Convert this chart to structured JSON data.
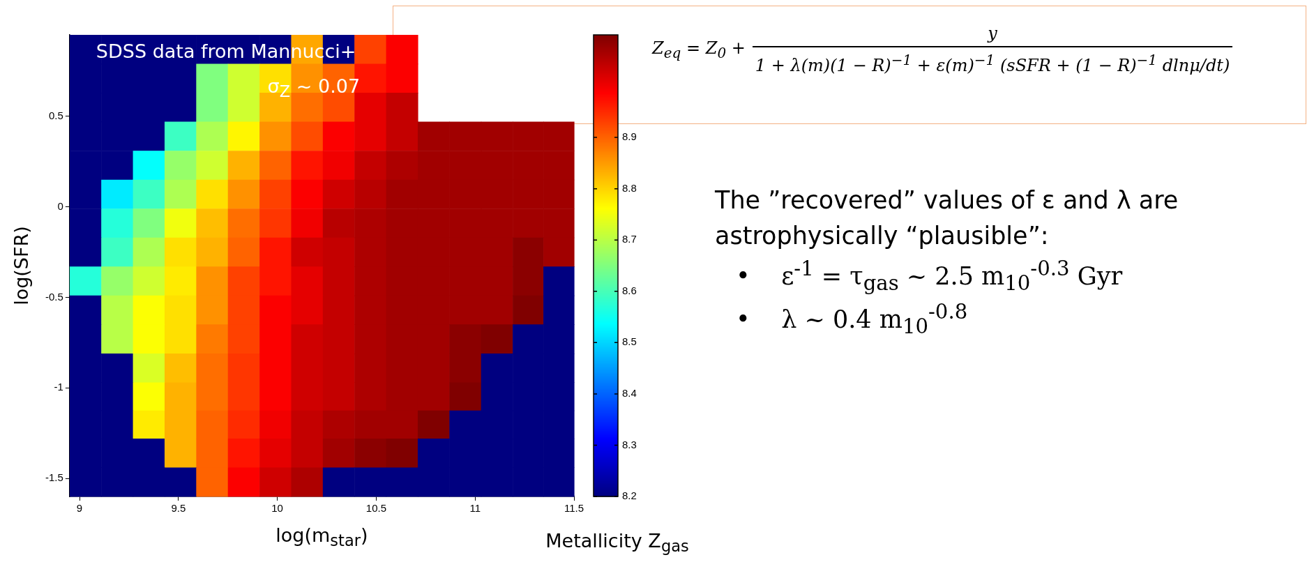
{
  "chart_data": {
    "type": "heatmap",
    "xlabel": "log(m$_{star}$)",
    "ylabel": "log(SFR)",
    "clabel": "Metallicity Z$_{gas}$",
    "x": [
      9.03,
      9.19,
      9.35,
      9.51,
      9.67,
      9.83,
      9.99,
      10.15,
      10.31,
      10.47,
      10.63,
      10.79,
      10.95,
      11.11,
      11.27,
      11.42
    ],
    "y": [
      0.87,
      0.71,
      0.55,
      0.39,
      0.23,
      0.07,
      -0.09,
      -0.25,
      -0.41,
      -0.57,
      -0.73,
      -0.89,
      -1.05,
      -1.2,
      -1.36,
      -1.52
    ],
    "xlim": [
      8.95,
      11.5
    ],
    "xticks": [
      9,
      9.5,
      10,
      10.5,
      11,
      11.5
    ],
    "ylim": [
      -1.6,
      0.95
    ],
    "yticks": [
      -1.5,
      -1,
      -0.5,
      0,
      0.5
    ],
    "clim": [
      8.2,
      9.1
    ],
    "cticks": [
      8.2,
      8.3,
      8.4,
      8.5,
      8.6,
      8.7,
      8.8,
      8.9
    ],
    "cells": [
      [
        8.2,
        8.2,
        8.2,
        8.2,
        8.2,
        8.2,
        8.2,
        8.84,
        8.2,
        8.93,
        8.99,
        null,
        null,
        null,
        null,
        null
      ],
      [
        8.2,
        8.2,
        8.2,
        8.2,
        8.65,
        8.72,
        8.79,
        8.86,
        8.9,
        8.97,
        8.99,
        null,
        null,
        null,
        null,
        null
      ],
      [
        8.2,
        8.2,
        8.2,
        8.2,
        8.65,
        8.72,
        8.83,
        8.89,
        8.92,
        9.01,
        9.04,
        null,
        null,
        null,
        null,
        null
      ],
      [
        8.2,
        8.2,
        8.2,
        8.59,
        8.69,
        8.77,
        8.86,
        8.92,
        8.99,
        9.01,
        9.04,
        9.07,
        9.07,
        9.07,
        9.07,
        9.07
      ],
      [
        8.2,
        8.2,
        8.54,
        8.67,
        8.72,
        8.83,
        8.9,
        8.97,
        9.0,
        9.04,
        9.06,
        9.07,
        9.07,
        9.07,
        9.07,
        9.07
      ],
      [
        8.2,
        8.52,
        8.59,
        8.69,
        8.79,
        8.86,
        8.93,
        8.99,
        9.03,
        9.05,
        9.07,
        9.07,
        9.07,
        9.07,
        9.07,
        9.07
      ],
      [
        8.2,
        8.57,
        8.65,
        8.75,
        8.82,
        8.89,
        8.94,
        9.0,
        9.05,
        9.06,
        9.07,
        9.07,
        9.07,
        9.07,
        9.07,
        9.07
      ],
      [
        8.2,
        8.59,
        8.69,
        8.79,
        8.83,
        8.9,
        8.97,
        9.03,
        9.04,
        9.06,
        9.07,
        9.07,
        9.07,
        9.07,
        9.09,
        9.07
      ],
      [
        8.57,
        8.67,
        8.72,
        8.78,
        8.86,
        8.93,
        8.97,
        9.01,
        9.04,
        9.06,
        9.07,
        9.07,
        9.07,
        9.07,
        9.09,
        8.2
      ],
      [
        8.2,
        8.7,
        8.76,
        8.79,
        8.86,
        8.93,
        8.99,
        9.01,
        9.04,
        9.06,
        9.07,
        9.07,
        9.07,
        9.07,
        9.1,
        8.2
      ],
      [
        8.2,
        8.7,
        8.76,
        8.79,
        8.88,
        8.93,
        8.99,
        9.03,
        9.04,
        9.06,
        9.07,
        9.07,
        9.09,
        9.1,
        8.2,
        8.2
      ],
      [
        8.2,
        8.2,
        8.73,
        8.82,
        8.89,
        8.94,
        8.99,
        9.03,
        9.04,
        9.06,
        9.07,
        9.07,
        9.09,
        8.2,
        8.2,
        8.2
      ],
      [
        8.2,
        8.2,
        8.76,
        8.83,
        8.89,
        8.94,
        8.99,
        9.03,
        9.04,
        9.06,
        9.07,
        9.07,
        9.1,
        8.2,
        8.2,
        8.2
      ],
      [
        8.2,
        8.2,
        8.78,
        8.83,
        8.9,
        8.95,
        9.0,
        9.04,
        9.06,
        9.07,
        9.07,
        9.1,
        8.2,
        8.2,
        8.2,
        8.2
      ],
      [
        8.2,
        8.2,
        8.2,
        8.83,
        8.9,
        8.97,
        9.01,
        9.04,
        9.07,
        9.09,
        9.1,
        8.2,
        8.2,
        8.2,
        8.2,
        8.2
      ],
      [
        8.2,
        8.2,
        8.2,
        8.2,
        8.9,
        8.99,
        9.03,
        9.06,
        8.2,
        8.2,
        8.2,
        8.2,
        8.2,
        8.2,
        8.2,
        8.2
      ]
    ],
    "annotations": [
      "SDSS data from Mannucci+",
      "σ$_{Z}$ ~ 0.07",
      "Z$_{eq}$ = Z$_{0}$ +",
      "y",
      "1 + λ(m)(1 − R)$^{−1}$ + ε(m)$^{−1}$ (sSFR + (1 − R)$^{−1}$ dlnμ/dt)",
      "The ”recovered” values of ε and λ are astrophysically “plausible”:",
      "•    ε$^{-1}$ = τ$_{gas}$ ~ 2.5 m$_{10}$$^{-0.3}$ Gyr",
      "•    λ ~ 0.4 m$_{10}$$^{-0.8}$"
    ]
  }
}
